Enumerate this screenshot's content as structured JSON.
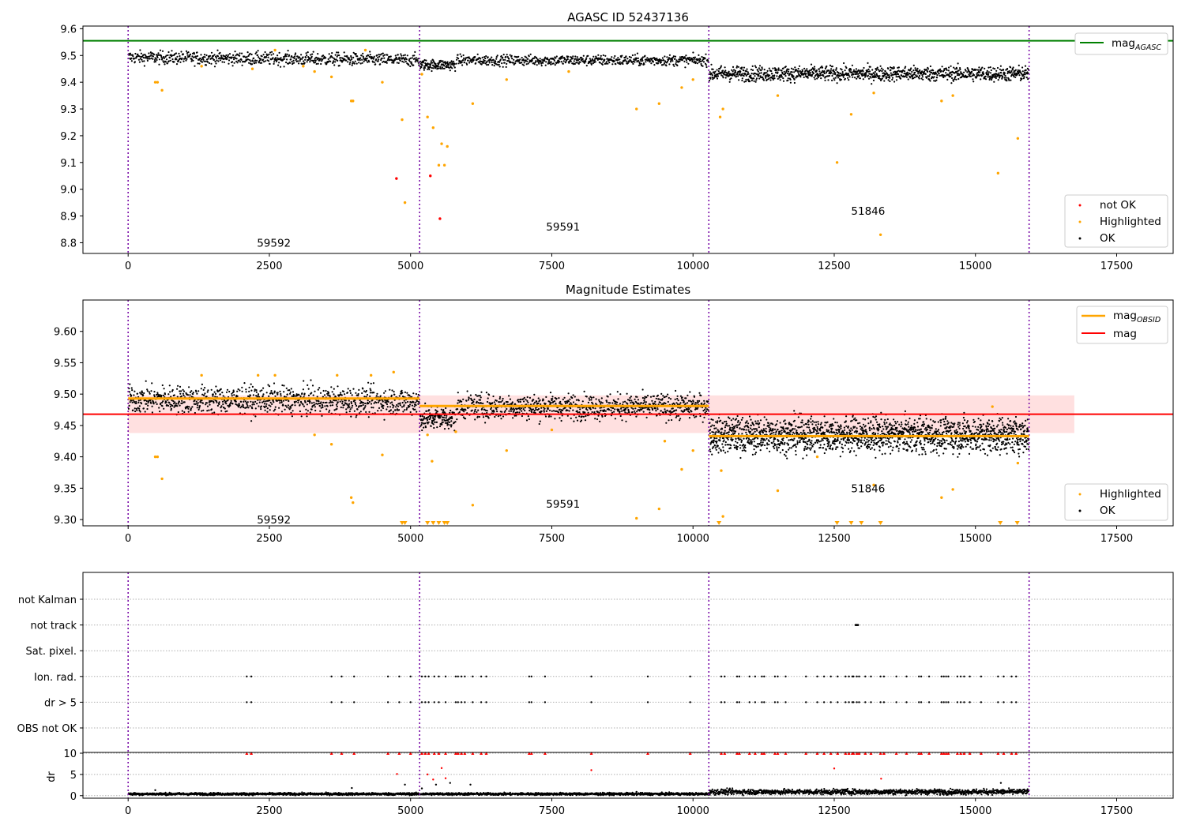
{
  "chart_data": [
    {
      "type": "scatter",
      "title": "AGASC ID 52437136",
      "xlim": [
        -800,
        18500
      ],
      "ylim": [
        8.76,
        9.61
      ],
      "xticks": [
        "0",
        "2500",
        "5000",
        "7500",
        "10000",
        "12500",
        "15000",
        "17500"
      ],
      "yticks": [
        "8.8",
        "8.9",
        "9.0",
        "9.1",
        "9.2",
        "9.3",
        "9.4",
        "9.5",
        "9.6"
      ],
      "reference_line": {
        "name": "mag",
        "subscript": "AGASC",
        "value": 9.555,
        "color": "#008000"
      },
      "obsid_boundaries": [
        0,
        5160,
        10280,
        15950
      ],
      "obsids": [
        {
          "label": "59592",
          "x": 2580,
          "y": 8.8
        },
        {
          "label": "59591",
          "x": 7700,
          "y": 8.86
        },
        {
          "label": "51846",
          "x": 13100,
          "y": 8.92
        }
      ],
      "segments": [
        {
          "x0": 0,
          "x1": 5160,
          "mean": 9.493,
          "slope": -2e-06,
          "spread": 0.012,
          "step": 7
        },
        {
          "x0": 5160,
          "x1": 5800,
          "mean": 9.465,
          "slope": 0,
          "spread": 0.01,
          "step": 5
        },
        {
          "x0": 5800,
          "x1": 10280,
          "mean": 9.482,
          "slope": 0,
          "spread": 0.01,
          "step": 7
        },
        {
          "x0": 10280,
          "x1": 15950,
          "mean": 9.432,
          "slope": 0,
          "spread": 0.014,
          "step": 5
        }
      ],
      "legend": [
        {
          "label": "mag",
          "subscript": "AGASC",
          "marker": "line",
          "color": "#008000"
        },
        {
          "label": "not OK",
          "marker": "dot",
          "color": "#ff0000"
        },
        {
          "label": "Highlighted",
          "marker": "dot",
          "color": "#ffa500"
        },
        {
          "label": "OK",
          "marker": "dot",
          "color": "#000000"
        }
      ],
      "highlighted_points": [
        [
          480,
          9.4
        ],
        [
          520,
          9.4
        ],
        [
          600,
          9.37
        ],
        [
          1300,
          9.46
        ],
        [
          2200,
          9.45
        ],
        [
          2600,
          9.52
        ],
        [
          3100,
          9.46
        ],
        [
          3300,
          9.44
        ],
        [
          3600,
          9.42
        ],
        [
          3950,
          9.33
        ],
        [
          3980,
          9.33
        ],
        [
          4200,
          9.52
        ],
        [
          4500,
          9.4
        ],
        [
          4850,
          9.26
        ],
        [
          4900,
          8.95
        ],
        [
          5200,
          9.43
        ],
        [
          5300,
          9.27
        ],
        [
          5400,
          9.23
        ],
        [
          5500,
          9.09
        ],
        [
          5550,
          9.17
        ],
        [
          5650,
          9.16
        ],
        [
          5600,
          9.09
        ],
        [
          6100,
          9.32
        ],
        [
          6700,
          9.41
        ],
        [
          7800,
          9.44
        ],
        [
          9000,
          9.3
        ],
        [
          9400,
          9.32
        ],
        [
          9800,
          9.38
        ],
        [
          10000,
          9.41
        ],
        [
          10480,
          9.27
        ],
        [
          10530,
          9.3
        ],
        [
          11500,
          9.35
        ],
        [
          12800,
          9.28
        ],
        [
          12550,
          9.1
        ],
        [
          13200,
          9.36
        ],
        [
          13320,
          8.83
        ],
        [
          14400,
          9.33
        ],
        [
          14600,
          9.35
        ],
        [
          15400,
          9.06
        ],
        [
          15750,
          9.19
        ]
      ],
      "not_ok_points": [
        [
          4750,
          9.04
        ],
        [
          5350,
          9.05
        ],
        [
          5520,
          8.89
        ]
      ]
    },
    {
      "type": "scatter",
      "title": "Magnitude Estimates",
      "xlim": [
        -800,
        18500
      ],
      "ylim": [
        9.29,
        9.65
      ],
      "xticks": [
        "0",
        "2500",
        "5000",
        "7500",
        "10000",
        "12500",
        "15000",
        "17500"
      ],
      "yticks": [
        "9.30",
        "9.35",
        "9.40",
        "9.45",
        "9.50",
        "9.55",
        "9.60"
      ],
      "mag_line": {
        "name": "mag",
        "value": 9.468,
        "band": [
          9.438,
          9.498
        ],
        "color": "#ff0000"
      },
      "mag_obsid": [
        {
          "x0": 0,
          "x1": 5160,
          "value": 9.493
        },
        {
          "x0": 5160,
          "x1": 10280,
          "value": 9.481
        },
        {
          "x0": 10280,
          "x1": 15950,
          "value": 9.433
        }
      ],
      "obsid_boundaries": [
        0,
        5160,
        10280,
        15950
      ],
      "obsids": [
        {
          "label": "59592",
          "x": 2580,
          "y": 9.3
        },
        {
          "label": "59591",
          "x": 7700,
          "y": 9.325
        },
        {
          "label": "51846",
          "x": 13100,
          "y": 9.35
        }
      ],
      "segments": [
        {
          "x0": 0,
          "x1": 5160,
          "mean": 9.492,
          "slope": -8e-07,
          "spread": 0.011,
          "step": 5
        },
        {
          "x0": 5160,
          "x1": 5800,
          "mean": 9.462,
          "slope": 0,
          "spread": 0.01,
          "step": 4
        },
        {
          "x0": 5800,
          "x1": 10280,
          "mean": 9.48,
          "slope": 0,
          "spread": 0.01,
          "step": 5
        },
        {
          "x0": 10280,
          "x1": 15950,
          "mean": 9.435,
          "slope": 0,
          "spread": 0.014,
          "step": 3
        }
      ],
      "legend_top": [
        {
          "label": "mag",
          "subscript": "OBSID",
          "marker": "line",
          "color": "#ffa500"
        },
        {
          "label": "mag",
          "marker": "line",
          "color": "#ff0000"
        }
      ],
      "legend_bottom": [
        {
          "label": "Highlighted",
          "marker": "dot",
          "color": "#ffa500"
        },
        {
          "label": "OK",
          "marker": "dot",
          "color": "#000000"
        }
      ],
      "highlighted_points": [
        [
          480,
          9.4
        ],
        [
          520,
          9.4
        ],
        [
          600,
          9.365
        ],
        [
          1300,
          9.53
        ],
        [
          2300,
          9.53
        ],
        [
          2600,
          9.53
        ],
        [
          3300,
          9.435
        ],
        [
          3600,
          9.42
        ],
        [
          3700,
          9.53
        ],
        [
          3950,
          9.335
        ],
        [
          3980,
          9.327
        ],
        [
          4300,
          9.53
        ],
        [
          4500,
          9.403
        ],
        [
          4700,
          9.535
        ],
        [
          5300,
          9.435
        ],
        [
          5380,
          9.393
        ],
        [
          5800,
          9.44
        ],
        [
          6100,
          9.323
        ],
        [
          6700,
          9.41
        ],
        [
          7500,
          9.443
        ],
        [
          9000,
          9.302
        ],
        [
          9400,
          9.317
        ],
        [
          9500,
          9.425
        ],
        [
          9800,
          9.38
        ],
        [
          10000,
          9.41
        ],
        [
          10500,
          9.378
        ],
        [
          10530,
          9.305
        ],
        [
          11500,
          9.346
        ],
        [
          12200,
          9.4
        ],
        [
          13200,
          9.355
        ],
        [
          14400,
          9.335
        ],
        [
          14600,
          9.348
        ],
        [
          15300,
          9.48
        ],
        [
          15750,
          9.39
        ]
      ],
      "clipped_points": [
        4850,
        4900,
        5300,
        5400,
        5500,
        5600,
        5650,
        10460,
        12550,
        12800,
        12980,
        13320,
        15440,
        15740
      ]
    },
    {
      "type": "scatter",
      "title": "",
      "xlim": [
        -800,
        18500
      ],
      "xticks": [
        "0",
        "2500",
        "5000",
        "7500",
        "10000",
        "12500",
        "15000",
        "17500"
      ],
      "flag_rows": [
        "not Kalman",
        "not track",
        "Sat. pixel.",
        "Ion. rad.",
        "dr > 5",
        "OBS not OK"
      ],
      "obsid_boundaries": [
        0,
        5160,
        10280,
        15950
      ],
      "not_track_x": [
        12880,
        12900,
        12920
      ],
      "flag_x": [
        2100,
        2180,
        3600,
        3780,
        4000,
        4600,
        4800,
        5000,
        5200,
        5260,
        5320,
        5420,
        5500,
        5620,
        5800,
        5840,
        5900,
        5960,
        6100,
        6250,
        6340,
        7100,
        7140,
        7380,
        8200,
        9200,
        9950,
        10500,
        10560,
        10780,
        10820,
        11000,
        11100,
        11220,
        11260,
        11450,
        11500,
        11640,
        12000,
        12200,
        12320,
        12440,
        12560,
        12700,
        12760,
        12820,
        12840,
        12900,
        12940,
        13050,
        13150,
        13320,
        13380,
        13600,
        13780,
        14000,
        14040,
        14180,
        14400,
        14440,
        14480,
        14520,
        14680,
        14740,
        14800,
        14900,
        15100,
        15400,
        15500,
        15640,
        15720
      ],
      "dr": {
        "ylabel": "dr",
        "ylim": [
          -0.6,
          10
        ],
        "yticks": [
          "0",
          "5",
          "10"
        ],
        "typical": [
          {
            "x0": 0,
            "x1": 10280,
            "value": 0.4
          },
          {
            "x0": 10280,
            "x1": 15950,
            "value": 0.9
          }
        ],
        "outliers": [
          [
            480,
            1.3
          ],
          [
            3960,
            1.8
          ],
          [
            4760,
            5.1
          ],
          [
            4900,
            2.6
          ],
          [
            5200,
            1.7
          ],
          [
            5300,
            5.0
          ],
          [
            5400,
            3.8
          ],
          [
            5450,
            2.6
          ],
          [
            5550,
            6.5
          ],
          [
            5620,
            4.1
          ],
          [
            5700,
            3.0
          ],
          [
            6060,
            2.6
          ],
          [
            8200,
            6.0
          ],
          [
            9000,
            0.9
          ],
          [
            12500,
            6.4
          ],
          [
            13330,
            4.0
          ],
          [
            15450,
            3.0
          ]
        ],
        "capped_x": [
          2100,
          2180,
          3600,
          3780,
          4000,
          4600,
          4800,
          5000,
          5200,
          5260,
          5320,
          5420,
          5500,
          5620,
          5800,
          5840,
          5900,
          5960,
          6100,
          6250,
          6340,
          7100,
          7140,
          7380,
          8200,
          9200,
          9950,
          10500,
          10560,
          10780,
          10820,
          11000,
          11100,
          11220,
          11260,
          11450,
          11500,
          11640,
          12000,
          12200,
          12320,
          12440,
          12560,
          12700,
          12760,
          12820,
          12840,
          12900,
          12940,
          13050,
          13150,
          13320,
          13380,
          13600,
          13780,
          14000,
          14040,
          14180,
          14400,
          14440,
          14480,
          14520,
          14680,
          14740,
          14800,
          14900,
          15100,
          15400,
          15500,
          15640,
          15720
        ]
      }
    }
  ]
}
